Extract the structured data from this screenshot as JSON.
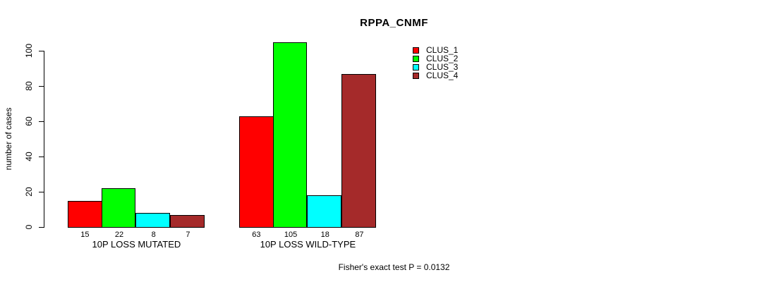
{
  "header": {
    "title": "RPPA_CNMF"
  },
  "axes": {
    "y_label": "number of cases",
    "y_ticks": [
      0,
      20,
      40,
      60,
      80,
      100
    ]
  },
  "legend": {
    "items": [
      {
        "label": "CLUS_1",
        "color": "#FF0000"
      },
      {
        "label": "CLUS_2",
        "color": "#00FF00"
      },
      {
        "label": "CLUS_3",
        "color": "#00FFFF"
      },
      {
        "label": "CLUS_4",
        "color": "#A52A2A"
      }
    ]
  },
  "footer": {
    "note": "Fisher's exact test P = 0.0132"
  },
  "chart_data": {
    "type": "bar",
    "title": "RPPA_CNMF",
    "xlabel": "",
    "ylabel": "number of cases",
    "categories": [
      "10P LOSS MUTATED",
      "10P LOSS WILD-TYPE"
    ],
    "series": [
      {
        "name": "CLUS_1",
        "color": "#FF0000",
        "values": [
          15,
          63
        ]
      },
      {
        "name": "CLUS_2",
        "color": "#00FF00",
        "values": [
          22,
          105
        ]
      },
      {
        "name": "CLUS_3",
        "color": "#00FFFF",
        "values": [
          8,
          18
        ]
      },
      {
        "name": "CLUS_4",
        "color": "#A52A2A",
        "values": [
          7,
          87
        ]
      }
    ],
    "bar_value_labels": [
      [
        15,
        22,
        8,
        7
      ],
      [
        63,
        105,
        18,
        87
      ]
    ],
    "ylim": [
      0,
      105
    ],
    "y_ticks": [
      0,
      20,
      40,
      60,
      80,
      100
    ],
    "grid": false,
    "legend_position": "top-right",
    "legend_entries": [
      "CLUS_1",
      "CLUS_2",
      "CLUS_3",
      "CLUS_4"
    ],
    "annotation": "Fisher's exact test P = 0.0132"
  }
}
